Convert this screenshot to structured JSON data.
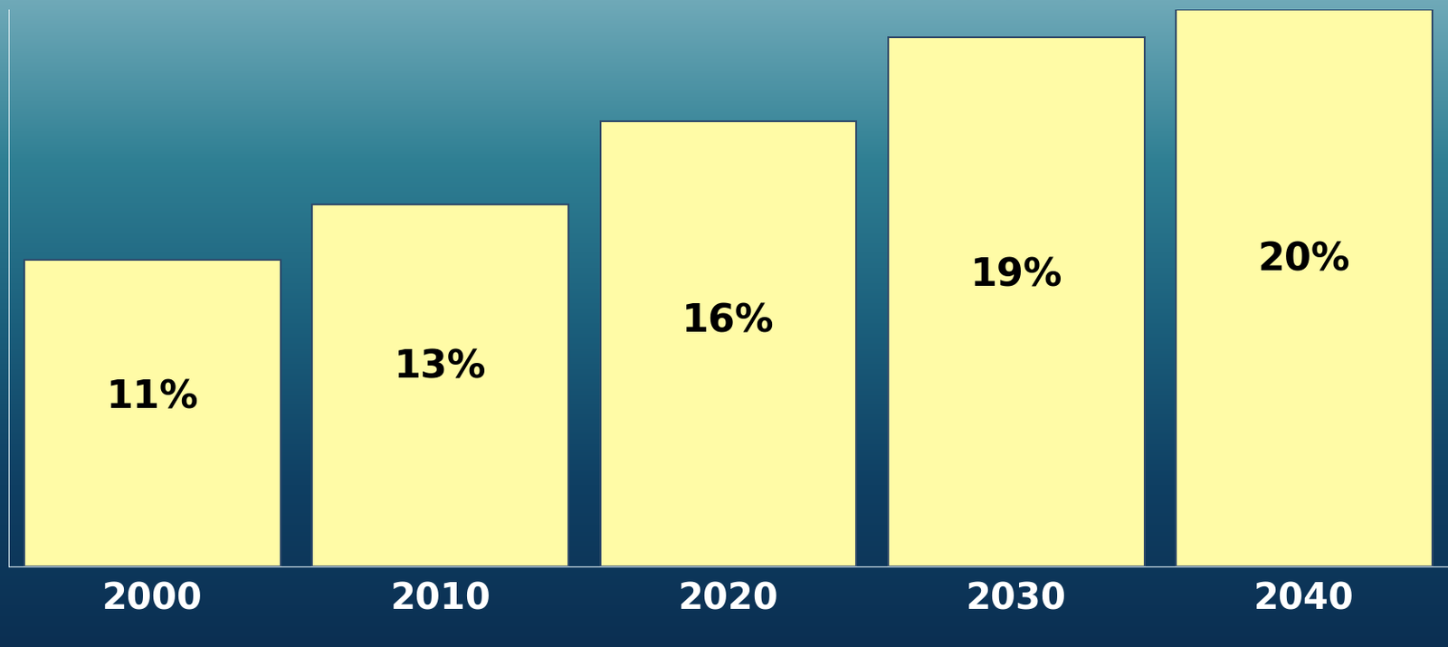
{
  "chart_data": {
    "type": "bar",
    "categories": [
      "2000",
      "2010",
      "2020",
      "2030",
      "2040"
    ],
    "values": [
      11,
      13,
      16,
      19,
      20
    ],
    "value_labels": [
      "11%",
      "13%",
      "16%",
      "19%",
      "20%"
    ],
    "data_labels": true,
    "color": "#fffba6",
    "ylim": [
      0,
      20
    ],
    "tick_labels": "x",
    "grid": false
  }
}
